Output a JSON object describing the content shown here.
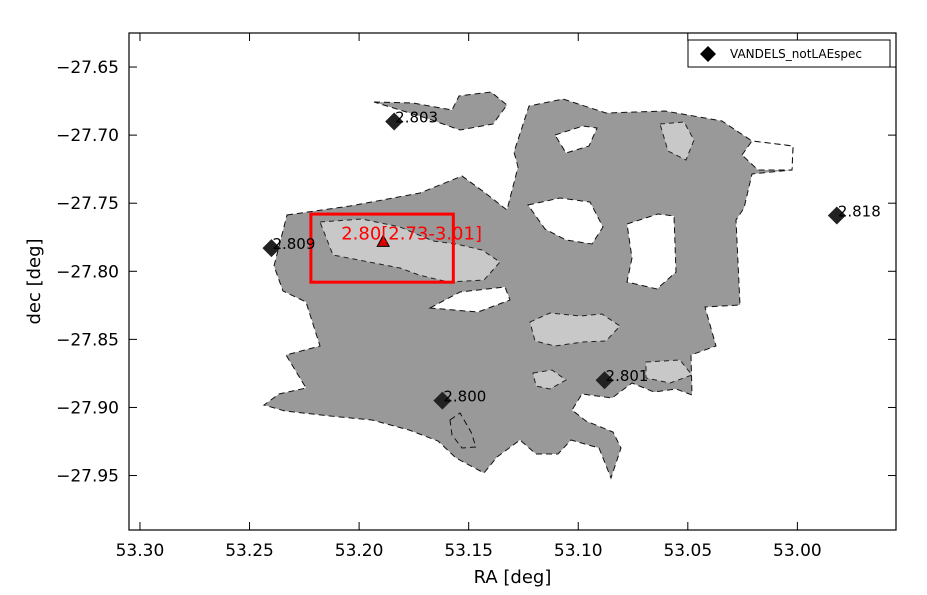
{
  "chart_data": {
    "type": "scatter",
    "xlabel": "RA [deg]",
    "ylabel": "dec [deg]",
    "xlim": [
      53.305,
      52.955
    ],
    "ylim": [
      -27.99,
      -27.625
    ],
    "x_ticks": [
      "53.30",
      "53.25",
      "53.20",
      "53.15",
      "53.10",
      "53.05",
      "53.00"
    ],
    "x_tick_values": [
      53.3,
      53.25,
      53.2,
      53.15,
      53.1,
      53.05,
      53.0
    ],
    "y_ticks": [
      "−27.65",
      "−27.70",
      "−27.75",
      "−27.80",
      "−27.85",
      "−27.90",
      "−27.95"
    ],
    "y_tick_values": [
      -27.65,
      -27.7,
      -27.75,
      -27.8,
      -27.85,
      -27.9,
      -27.95
    ],
    "legend": {
      "position": "top-right",
      "entries": [
        "VANDELS_notLAEspec"
      ]
    },
    "series": [
      {
        "name": "VANDELS_notLAEspec",
        "marker": "diamond",
        "color": "#222222",
        "points": [
          {
            "x": 53.184,
            "y": -27.69,
            "label": "2.803"
          },
          {
            "x": 53.24,
            "y": -27.783,
            "label": "2.809"
          },
          {
            "x": 52.982,
            "y": -27.759,
            "label": "2.818"
          },
          {
            "x": 53.162,
            "y": -27.895,
            "label": "2.800"
          },
          {
            "x": 53.088,
            "y": -27.88,
            "label": "2.801"
          }
        ]
      }
    ],
    "annotation": {
      "text": "2.80[2.73-3.01]",
      "x": 53.189,
      "y": -27.778,
      "marker": "triangle",
      "color": "#ff0000",
      "box_ra": [
        53.222,
        53.157
      ],
      "box_dec": [
        -27.758,
        -27.808
      ]
    },
    "density_region": {
      "outer_color": "#999999",
      "inner_color": "#c8c8c8",
      "contour_style": "dashed"
    }
  }
}
